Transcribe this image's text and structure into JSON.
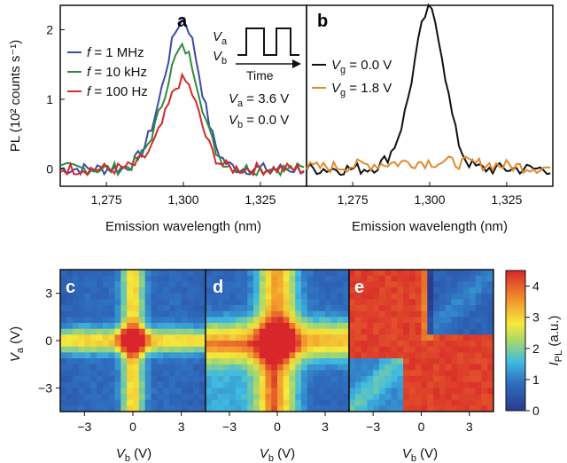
{
  "chart_data": [
    {
      "panel": "a",
      "type": "line",
      "xlabel": "Emission wavelength (nm)",
      "ylabel_html": "PL (10² counts s⁻¹)",
      "xlim": [
        1260,
        1340
      ],
      "ylim": [
        -0.25,
        2.35
      ],
      "xticks": [
        1275,
        1300,
        1325
      ],
      "xtick_labels": [
        "1,275",
        "1,300",
        "1,325"
      ],
      "yticks": [
        0,
        1,
        2
      ],
      "ytick_labels": [
        "0",
        "1",
        "2"
      ],
      "inset_labels": {
        "va": "V",
        "va_sub": "a",
        "vb": "V",
        "vb_sub": "b",
        "time": "Time"
      },
      "annotations": [
        {
          "text": "V",
          "sub": "a",
          "rest": " = 3.6 V"
        },
        {
          "text": "V",
          "sub": "b",
          "rest": " = 0.0 V"
        }
      ],
      "series": [
        {
          "name": "f = 1 MHz",
          "name_pre": "f",
          "name_post": " = 1 MHz",
          "color": "#3b4ba6",
          "center": 1300,
          "width": 5.5,
          "peak": 2.1,
          "shoulder": 0.25
        },
        {
          "name": "f = 10 kHz",
          "name_pre": "f",
          "name_post": " = 10 kHz",
          "color": "#2e8b3e",
          "center": 1300,
          "width": 5.5,
          "peak": 1.7,
          "shoulder": 0.2
        },
        {
          "name": "f = 100 Hz",
          "name_pre": "f",
          "name_post": " = 100 Hz",
          "color": "#d42a2a",
          "center": 1300,
          "width": 5.2,
          "peak": 1.25,
          "shoulder": 0.15
        }
      ]
    },
    {
      "panel": "b",
      "type": "line",
      "xlabel": "Emission wavelength (nm)",
      "xlim": [
        1260,
        1340
      ],
      "ylim": [
        -0.25,
        2.35
      ],
      "xticks": [
        1275,
        1300,
        1325
      ],
      "xtick_labels": [
        "1,275",
        "1,300",
        "1,325"
      ],
      "series": [
        {
          "name": "Vg = 0.0 V",
          "name_pre": "V",
          "name_sub": "g",
          "name_post": " = 0.0 V",
          "color": "#111111",
          "center": 1300,
          "width": 5.0,
          "peak": 2.25,
          "shoulder": 0.2
        },
        {
          "name": "Vg = 1.8 V",
          "name_pre": "V",
          "name_sub": "g",
          "name_post": " = 1.8 V",
          "color": "#e08a2e",
          "center": 1300,
          "width": 20,
          "peak": 0.1,
          "shoulder": 0.0
        }
      ]
    },
    {
      "panel": "c",
      "type": "heatmap",
      "pattern": "cross-small",
      "xlabel": "V",
      "xlabel_sub": "b",
      "xlabel_unit": " (V)",
      "ylabel": "V",
      "ylabel_sub": "a",
      "ylabel_unit": " (V)",
      "xlim": [
        -4.5,
        4.5
      ],
      "ylim": [
        -4.5,
        4.5
      ],
      "xticks": [
        -3,
        0,
        3
      ],
      "xtick_labels": [
        "−3",
        "0",
        "3"
      ],
      "yticks": [
        -3,
        0,
        3
      ],
      "ytick_labels": [
        "−3",
        "0",
        "3"
      ]
    },
    {
      "panel": "d",
      "type": "heatmap",
      "pattern": "cross-wide",
      "xlabel": "V",
      "xlabel_sub": "b",
      "xlabel_unit": " (V)",
      "xlim": [
        -4.5,
        4.5
      ],
      "ylim": [
        -4.5,
        4.5
      ],
      "xticks": [
        -3,
        0,
        3
      ],
      "xtick_labels": [
        "−3",
        "0",
        "3"
      ]
    },
    {
      "panel": "e",
      "type": "heatmap",
      "pattern": "diagonal",
      "xlabel": "V",
      "xlabel_sub": "b",
      "xlabel_unit": " (V)",
      "xlim": [
        -4.5,
        4.5
      ],
      "ylim": [
        -4.5,
        4.5
      ],
      "xticks": [
        -3,
        0,
        3
      ],
      "xtick_labels": [
        "−3",
        "0",
        "3"
      ]
    }
  ],
  "colorbar": {
    "label": "I",
    "label_sub": "PL",
    "label_unit": " (a.u.)",
    "range": [
      0,
      4.5
    ],
    "ticks": [
      0,
      1,
      2,
      3,
      4
    ],
    "tick_labels": [
      "0",
      "1",
      "2",
      "3",
      "4"
    ]
  }
}
